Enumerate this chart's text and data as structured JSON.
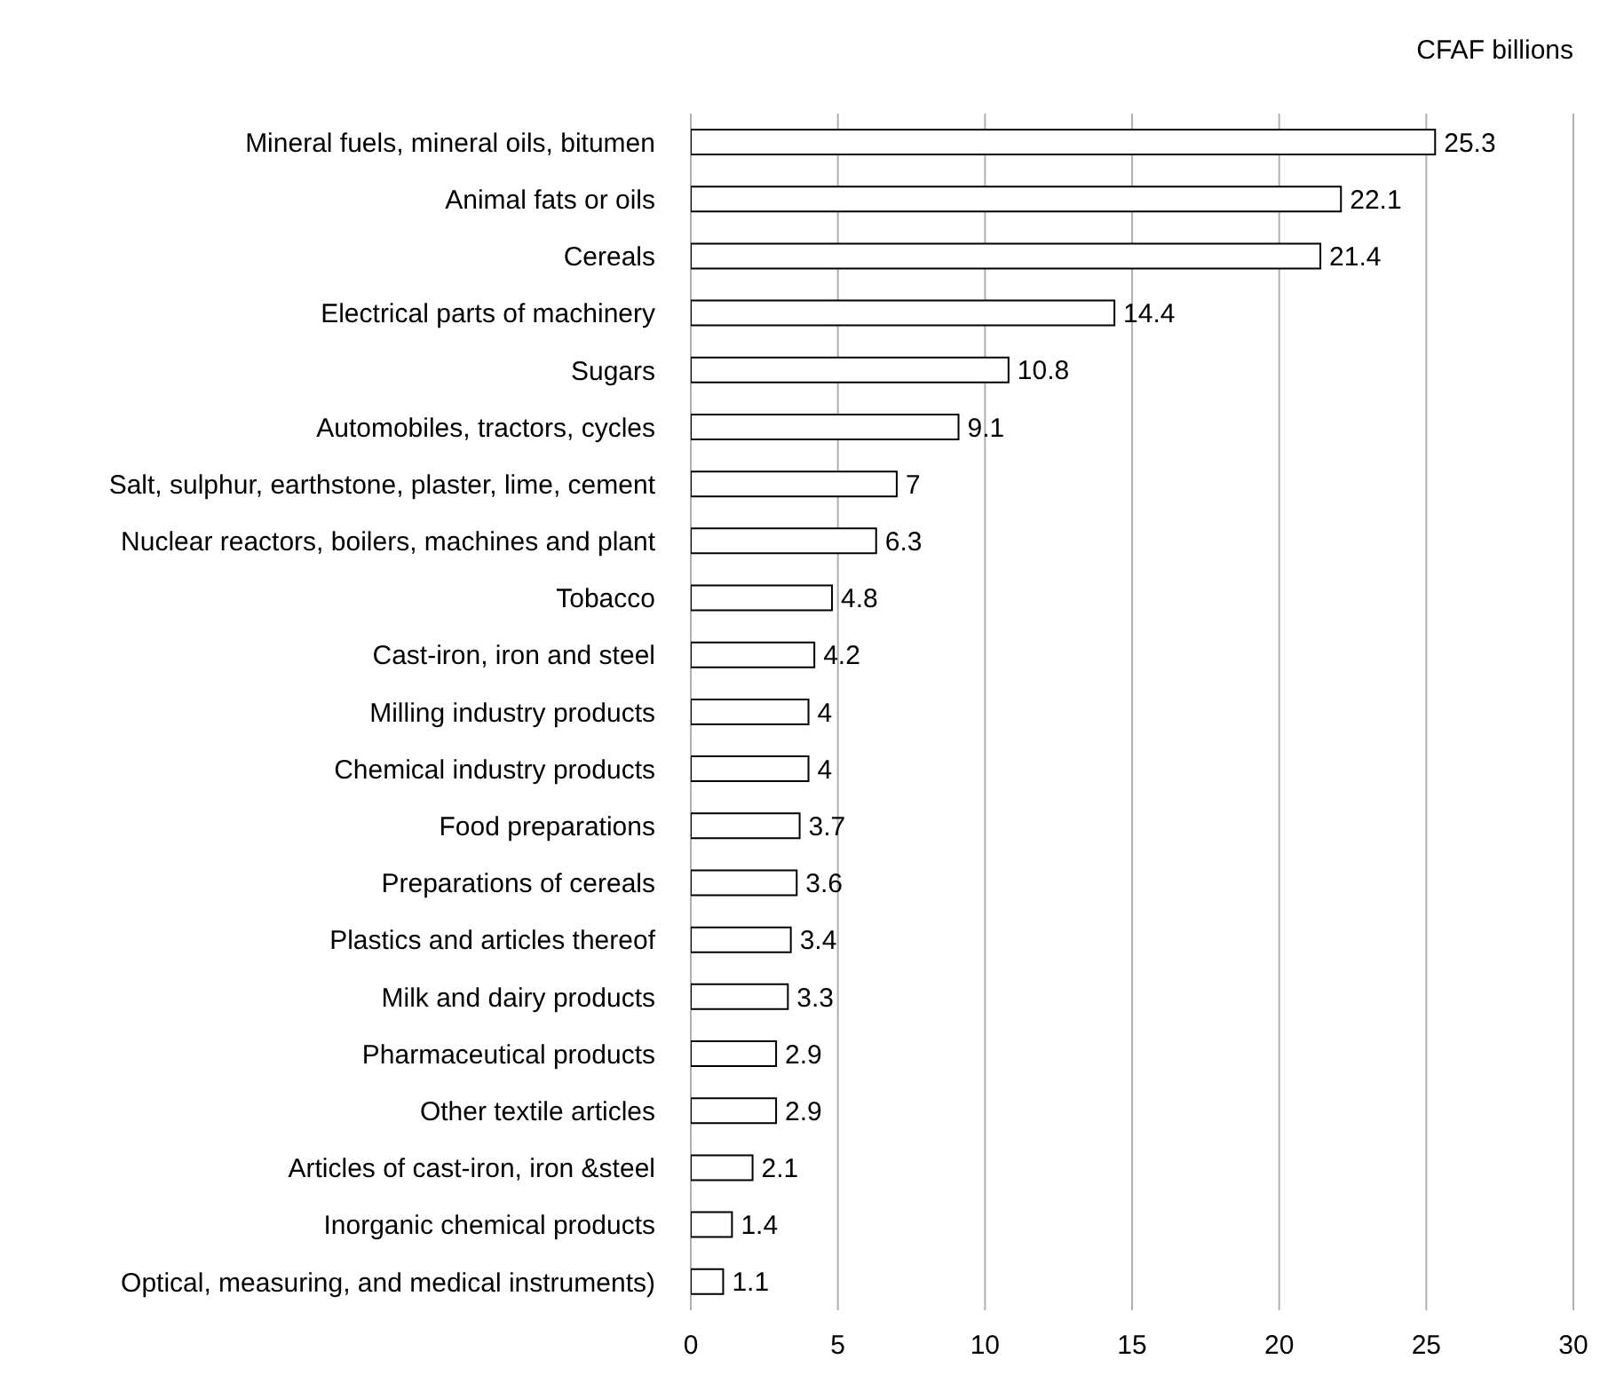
{
  "chart_data": {
    "type": "bar",
    "orientation": "horizontal",
    "xlabel": "CFAF billions",
    "categories": [
      "Mineral fuels, mineral oils, bitumen",
      "Animal fats or oils",
      "Cereals",
      "Electrical parts of machinery",
      "Sugars",
      "Automobiles, tractors, cycles",
      "Salt, sulphur, earthstone, plaster, lime, cement",
      "Nuclear reactors, boilers, machines and plant",
      "Tobacco",
      "Cast-iron, iron and steel",
      "Milling industry products",
      "Chemical industry products",
      "Food preparations",
      "Preparations of cereals",
      "Plastics and articles thereof",
      "Milk and dairy products",
      "Pharmaceutical products",
      "Other textile articles",
      "Articles of cast-iron, iron &steel",
      "Inorganic chemical products",
      "Optical, measuring, and medical instruments)"
    ],
    "values": [
      25.3,
      22.1,
      21.4,
      14.4,
      10.8,
      9.1,
      7,
      6.3,
      4.8,
      4.2,
      4,
      4,
      3.7,
      3.6,
      3.4,
      3.3,
      2.9,
      2.9,
      2.1,
      1.4,
      1.1
    ],
    "color": "#ffffff",
    "xlim": [
      0,
      30
    ],
    "xticks": [
      0,
      5,
      10,
      15,
      20,
      25,
      30
    ],
    "grid": "x",
    "data_labels": true
  }
}
